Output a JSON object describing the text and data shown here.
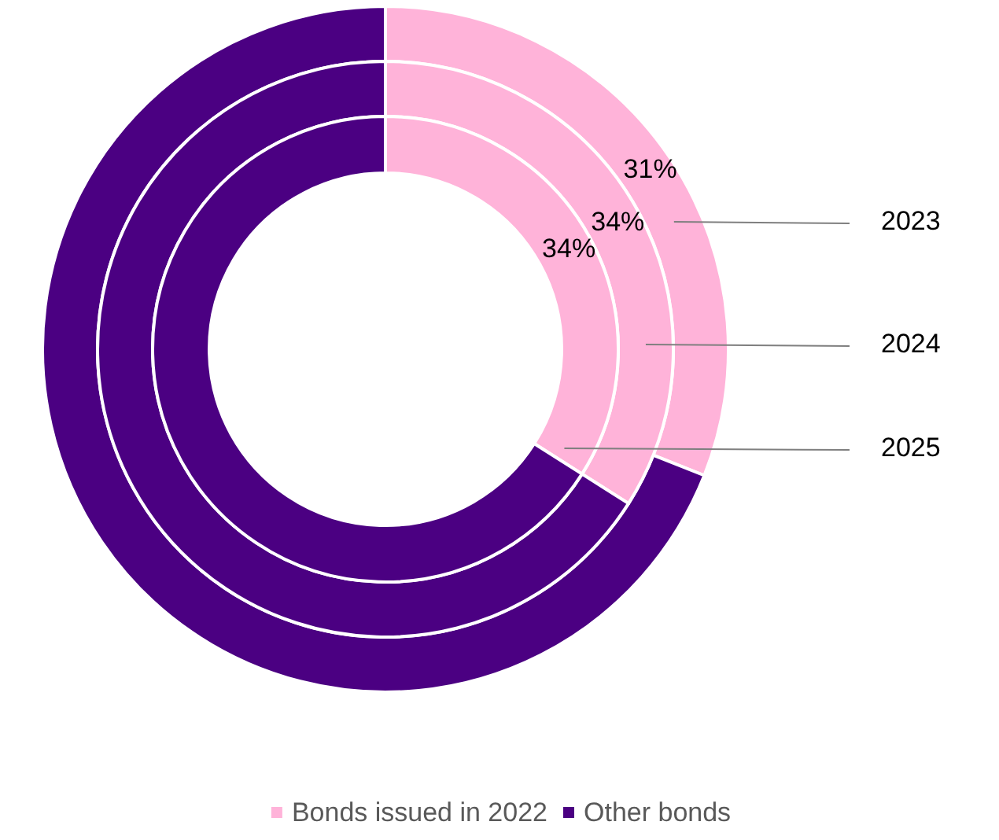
{
  "chart_data": {
    "type": "donut",
    "categories": [
      "Bonds issued in 2022",
      "Other bonds"
    ],
    "colors": [
      "#ffb3d9",
      "#4b0082"
    ],
    "series": [
      {
        "name": "2023",
        "values": [
          31,
          69
        ],
        "value_labels": [
          "31%",
          null
        ]
      },
      {
        "name": "2024",
        "values": [
          34,
          66
        ],
        "value_labels": [
          "34%",
          null
        ]
      },
      {
        "name": "2025",
        "values": [
          34,
          66
        ],
        "value_labels": [
          "34%",
          null
        ]
      }
    ],
    "legend": "bottom"
  }
}
